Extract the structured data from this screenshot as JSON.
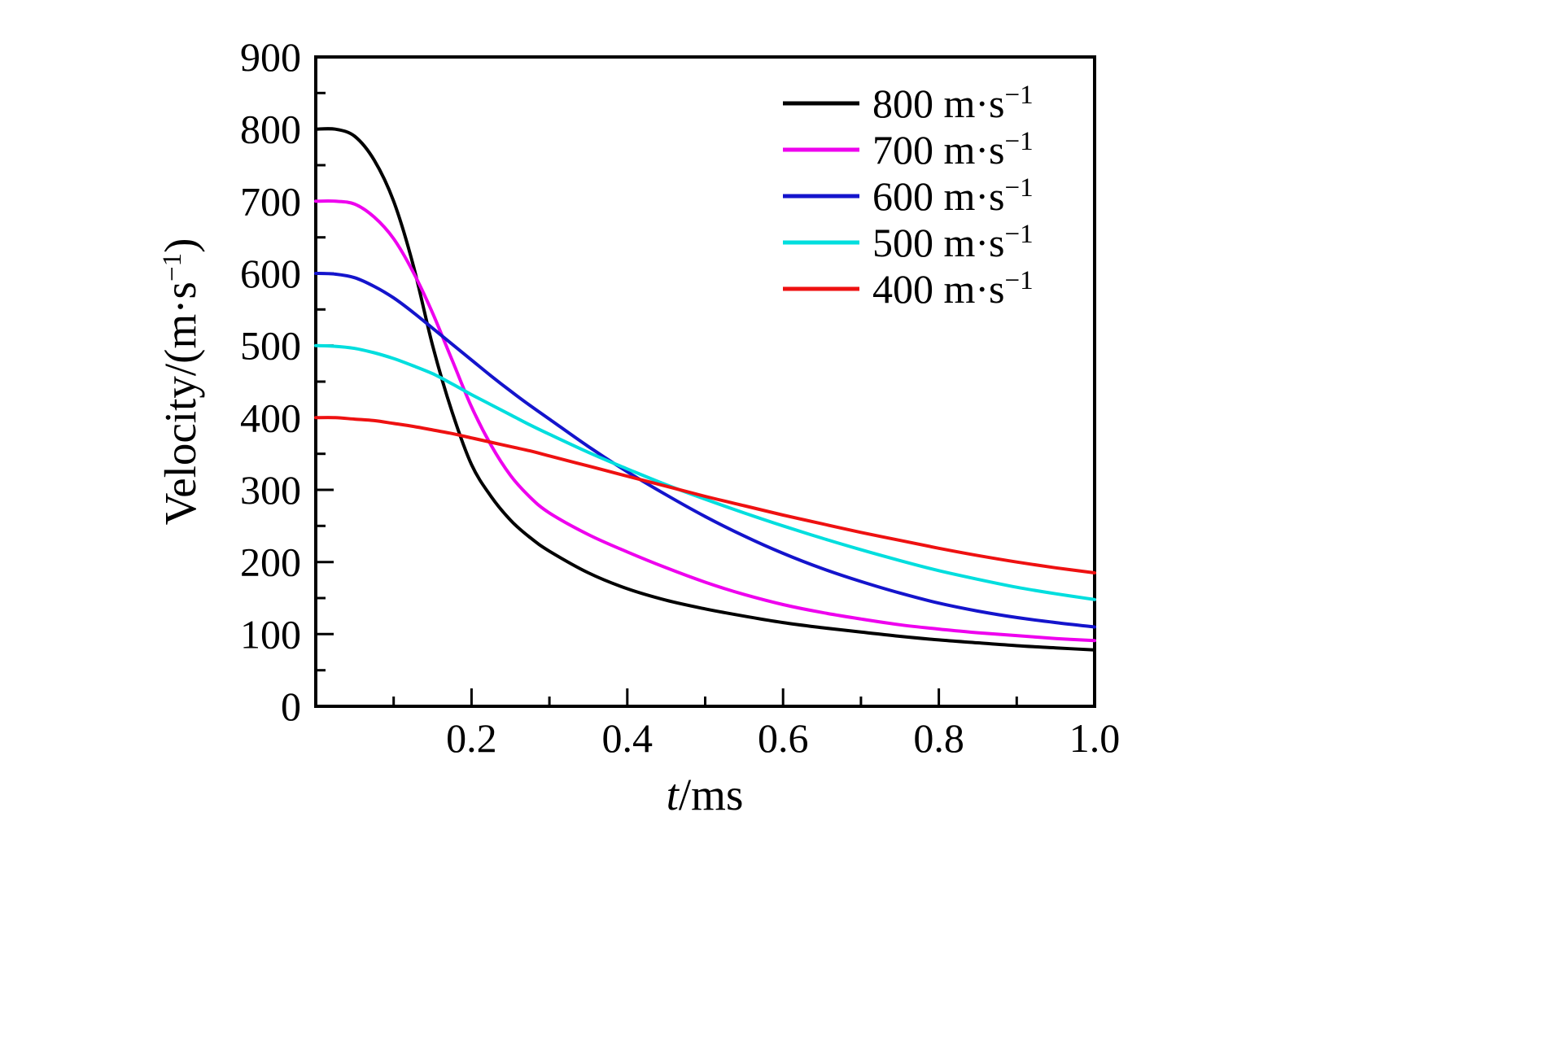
{
  "chart_data": {
    "type": "line",
    "title": "",
    "xlabel_italic": "t",
    "xlabel_rest": "/ms",
    "ylabel_main": "Velocity/(m·s",
    "ylabel_sup": "−1",
    "ylabel_close": ")",
    "xlim": [
      0,
      1.0
    ],
    "ylim": [
      0,
      900
    ],
    "grid": false,
    "legend_position": "top-right-inside",
    "x_major_ticks": [
      0.2,
      0.4,
      0.6,
      0.8,
      1.0
    ],
    "x_tick_labels": [
      "0.2",
      "0.4",
      "0.6",
      "0.8",
      "1.0"
    ],
    "x_minor_ticks": [
      0.1,
      0.3,
      0.5,
      0.7,
      0.9
    ],
    "y_major_ticks": [
      0,
      100,
      200,
      300,
      400,
      500,
      600,
      700,
      800,
      900
    ],
    "y_tick_labels": [
      "0",
      "100",
      "200",
      "300",
      "400",
      "500",
      "600",
      "700",
      "800",
      "900"
    ],
    "y_minor_ticks": [
      50,
      150,
      250,
      350,
      450,
      550,
      650,
      750,
      850
    ],
    "x": [
      0,
      0.025,
      0.05,
      0.075,
      0.1,
      0.125,
      0.15,
      0.175,
      0.2,
      0.225,
      0.25,
      0.275,
      0.3,
      0.35,
      0.4,
      0.45,
      0.5,
      0.55,
      0.6,
      0.65,
      0.7,
      0.75,
      0.8,
      0.85,
      0.9,
      0.95,
      1.0
    ],
    "series": [
      {
        "label": "800 m·s",
        "label_sup": "−1",
        "color": "#000000",
        "values": [
          800,
          800,
          790,
          757,
          700,
          612,
          500,
          408,
          335,
          291,
          258,
          234,
          215,
          185,
          163,
          147,
          135,
          125,
          116,
          109,
          103,
          97,
          92,
          88,
          84,
          81,
          78
        ]
      },
      {
        "label": "700 m·s",
        "label_sup": "−1",
        "color": "#ee00ee",
        "values": [
          700,
          700,
          696,
          678,
          648,
          602,
          545,
          480,
          415,
          362,
          320,
          290,
          268,
          238,
          214,
          192,
          172,
          155,
          141,
          130,
          121,
          113,
          107,
          102,
          98,
          94,
          91
        ]
      },
      {
        "label": "600 m·s",
        "label_sup": "−1",
        "color": "#1414cc",
        "values": [
          600,
          599,
          594,
          582,
          566,
          546,
          524,
          502,
          480,
          458,
          437,
          417,
          398,
          360,
          325,
          293,
          263,
          236,
          212,
          191,
          173,
          157,
          143,
          132,
          123,
          116,
          110
        ]
      },
      {
        "label": "500 m·s",
        "label_sup": "−1",
        "color": "#00dede",
        "values": [
          500,
          499,
          496,
          490,
          482,
          472,
          461,
          447,
          432,
          418,
          404,
          390,
          377,
          352,
          329,
          307,
          287,
          268,
          250,
          233,
          217,
          202,
          188,
          176,
          165,
          156,
          148
        ]
      },
      {
        "label": "400 m·s",
        "label_sup": "−1",
        "color": "#ee1111",
        "values": [
          400,
          400,
          398,
          396,
          392,
          388,
          383,
          378,
          372,
          366,
          360,
          354,
          347,
          333,
          319,
          305,
          291,
          278,
          265,
          253,
          241,
          230,
          219,
          209,
          200,
          192,
          185
        ]
      }
    ]
  }
}
